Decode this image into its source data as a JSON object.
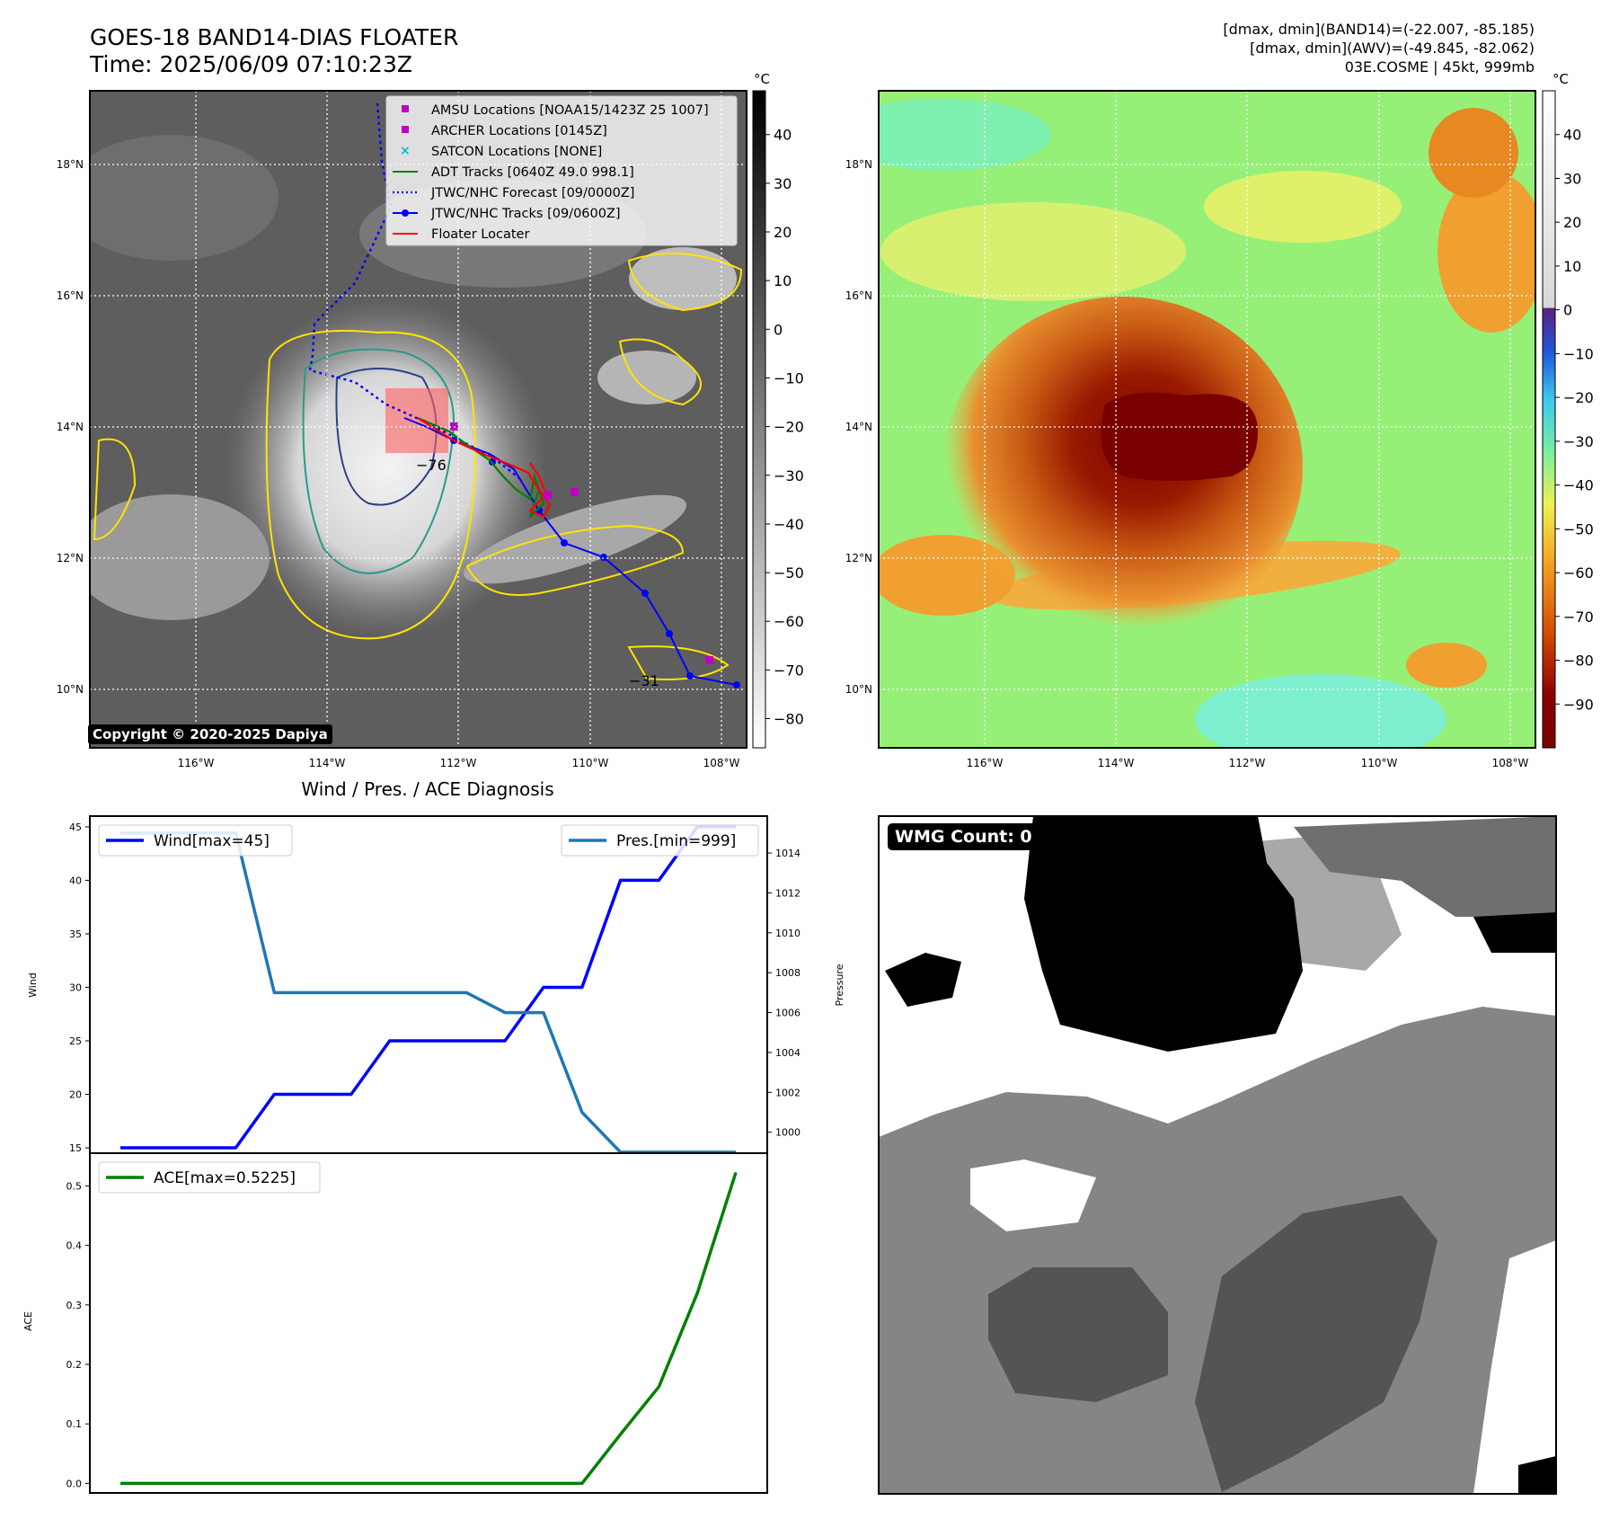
{
  "header": {
    "title_line1": "GOES-18 BAND14-DIAS FLOATER",
    "title_line2": "Time: 2025/06/09 07:10:23Z",
    "info_line1": "[dmax, dmin](BAND14)=(-22.007, -85.185)",
    "info_line2": "[dmax, dmin](AWV)=(-49.845, -82.062)",
    "info_line3": "03E.COSME | 45kt, 999mb"
  },
  "map": {
    "lat_labels": [
      "18°N",
      "16°N",
      "14°N",
      "12°N",
      "10°N"
    ],
    "lon_labels": [
      "116°W",
      "114°W",
      "112°W",
      "110°W",
      "108°W"
    ],
    "contour_labels": [
      "−76",
      "−31"
    ],
    "copyright": "Copyright © 2020-2025 Dapiya",
    "legend": [
      {
        "label": "AMSU Locations [NOAA15/1423Z 25 1007]",
        "color": "#bf00bf",
        "marker": "square"
      },
      {
        "label": "ARCHER Locations [0145Z]",
        "color": "#bf00bf",
        "marker": "square"
      },
      {
        "label": "SATCON Locations [NONE]",
        "color": "#00bfbf",
        "marker": "x"
      },
      {
        "label": "ADT Tracks [0640Z 49.0 998.1]",
        "color": "#008000",
        "marker": "line"
      },
      {
        "label": "JTWC/NHC Forecast [09/0000Z]",
        "color": "#0000ff",
        "marker": "dotted"
      },
      {
        "label": "JTWC/NHC Tracks [09/0600Z]",
        "color": "#0000ff",
        "marker": "line-dot"
      },
      {
        "label": "Floater Locater",
        "color": "#ff0000",
        "marker": "line"
      }
    ]
  },
  "colorbars": {
    "unit": "°C",
    "gray_ticks": [
      "40",
      "30",
      "20",
      "10",
      "0",
      "−10",
      "−20",
      "−30",
      "−40",
      "−50",
      "−60",
      "−70",
      "−80"
    ],
    "color_ticks": [
      "40",
      "30",
      "20",
      "10",
      "0",
      "−10",
      "−20",
      "−30",
      "−40",
      "−50",
      "−60",
      "−70",
      "−80",
      "−90"
    ]
  },
  "wmg": {
    "label": "WMG Count: 0"
  },
  "chart_data": [
    {
      "type": "line",
      "title": "Wind / Pres. / ACE Diagnosis",
      "ylabel": "Wind",
      "y2label": "Pressure",
      "ylim": [
        14.5,
        46
      ],
      "y2lim": [
        998.95,
        1015.85
      ],
      "y_ticks": [
        "45",
        "40",
        "35",
        "30",
        "25",
        "20",
        "15"
      ],
      "y2_ticks": [
        "1014",
        "1012",
        "1010",
        "1008",
        "1006",
        "1004",
        "1002",
        "1000"
      ],
      "x": [
        0,
        1,
        2,
        3,
        4,
        5,
        6,
        7,
        8,
        9,
        10,
        11,
        12,
        13,
        14,
        15,
        16
      ],
      "series": [
        {
          "name": "Wind[max=45]",
          "color": "#0000ff",
          "values": [
            15,
            15,
            15,
            15,
            20,
            20,
            20,
            25,
            25,
            25,
            25,
            30,
            30,
            40,
            40,
            45,
            45
          ]
        },
        {
          "name": "Pres.[min=999]",
          "color": "#1f77b4",
          "values": [
            1015,
            1015,
            1015,
            1015,
            1007,
            1007,
            1007,
            1007,
            1007,
            1007,
            1006,
            1006,
            1001,
            999,
            999,
            999,
            999
          ]
        }
      ]
    },
    {
      "type": "line",
      "ylabel": "ACE",
      "ylim": [
        -0.016,
        0.555
      ],
      "y_ticks": [
        "0.5",
        "0.4",
        "0.3",
        "0.2",
        "0.1",
        "0.0"
      ],
      "x": [
        0,
        1,
        2,
        3,
        4,
        5,
        6,
        7,
        8,
        9,
        10,
        11,
        12,
        13,
        14,
        15,
        16
      ],
      "series": [
        {
          "name": "ACE[max=0.5225]",
          "color": "#008000",
          "values": [
            0,
            0,
            0,
            0,
            0,
            0,
            0,
            0,
            0,
            0,
            0,
            0,
            0,
            0.0825,
            0.1625,
            0.32,
            0.5225
          ]
        }
      ]
    }
  ]
}
